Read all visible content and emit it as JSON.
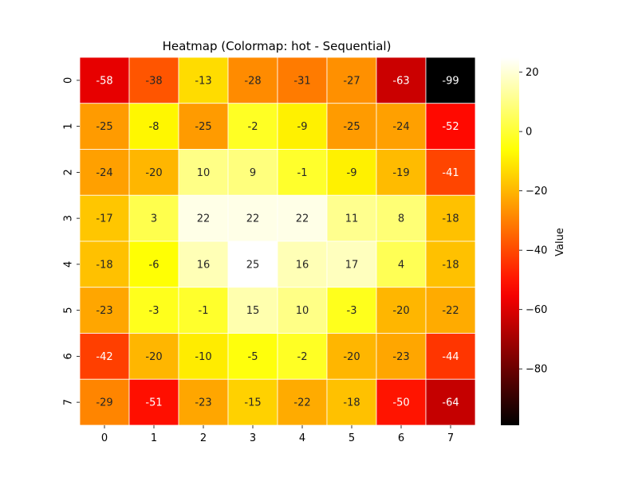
{
  "chart_data": {
    "type": "heatmap",
    "title": "Heatmap (Colormap: hot - Sequential)",
    "x_labels": [
      "0",
      "1",
      "2",
      "3",
      "4",
      "5",
      "6",
      "7"
    ],
    "y_labels": [
      "0",
      "1",
      "2",
      "3",
      "4",
      "5",
      "6",
      "7"
    ],
    "values": [
      [
        -58,
        -38,
        -13,
        -28,
        -31,
        -27,
        -63,
        -99
      ],
      [
        -25,
        -8,
        -25,
        -2,
        -9,
        -25,
        -24,
        -52
      ],
      [
        -24,
        -20,
        10,
        9,
        -1,
        -9,
        -19,
        -41
      ],
      [
        -17,
        3,
        22,
        22,
        22,
        11,
        8,
        -18
      ],
      [
        -18,
        -6,
        16,
        25,
        16,
        17,
        4,
        -18
      ],
      [
        -23,
        -3,
        -1,
        15,
        10,
        -3,
        -20,
        -22
      ],
      [
        -42,
        -20,
        -10,
        -5,
        -2,
        -20,
        -23,
        -44
      ],
      [
        -29,
        -51,
        -23,
        -15,
        -22,
        -18,
        -50,
        -64
      ]
    ],
    "colormap": "hot",
    "vmin": -99,
    "vmax": 25,
    "colorbar": {
      "label": "Value",
      "ticks": [
        20,
        0,
        -20,
        -40,
        -60,
        -80
      ],
      "tick_labels": [
        "20",
        "0",
        "−20",
        "−40",
        "−60",
        "−80"
      ]
    },
    "annotations": true,
    "cell_border_color": "#ffffff"
  }
}
